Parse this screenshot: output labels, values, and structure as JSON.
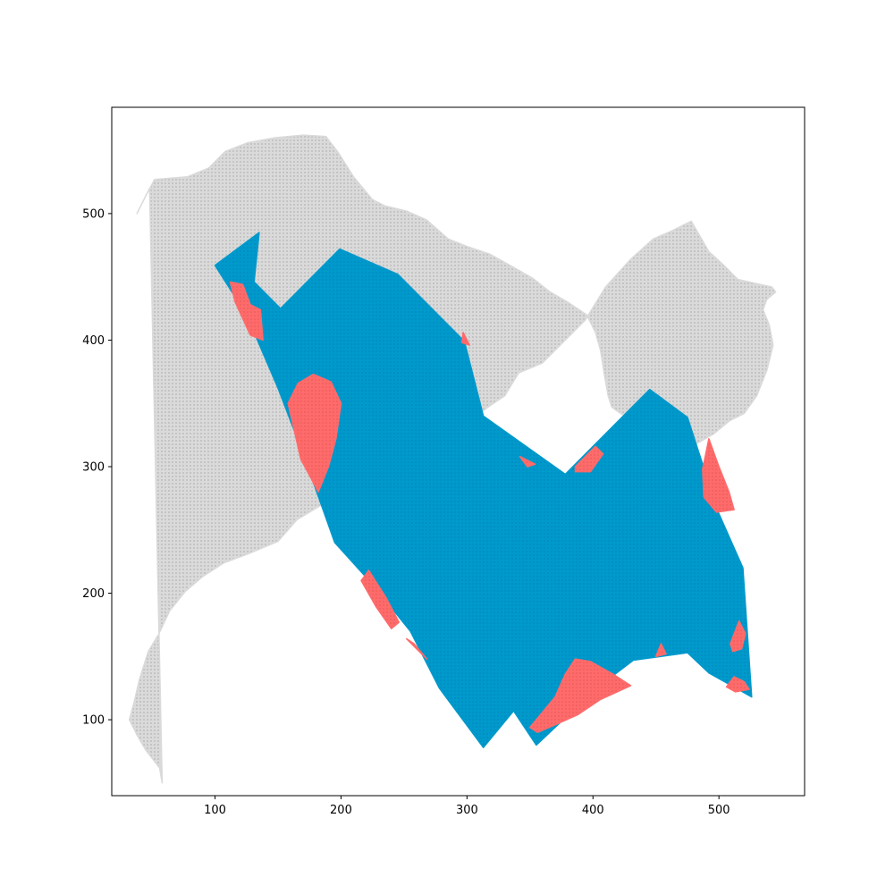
{
  "chart_data": {
    "type": "scatter",
    "title": "",
    "xlabel": "",
    "ylabel": "",
    "xlim": [
      18,
      568
    ],
    "ylim": [
      40,
      584
    ],
    "x_ticks": [
      100,
      200,
      300,
      400,
      500
    ],
    "y_ticks": [
      100,
      200,
      300,
      400,
      500
    ],
    "x_tick_labels": [
      "100",
      "200",
      "300",
      "400",
      "500"
    ],
    "y_tick_labels": [
      "100",
      "200",
      "300",
      "400",
      "500"
    ],
    "grid": false,
    "legend": "none",
    "colors": {
      "background_points": "#dadada",
      "hull_points": "#0099cc",
      "outside_hull_points": "#ff6b6b"
    },
    "series": [
      {
        "role": "all-points",
        "color": "#dadada",
        "outline": [
          [
            38,
            500
          ],
          [
            45,
            514
          ],
          [
            52,
            527
          ],
          [
            78,
            529
          ],
          [
            95,
            536
          ],
          [
            108,
            549
          ],
          [
            126,
            556
          ],
          [
            148,
            560
          ],
          [
            170,
            562
          ],
          [
            188,
            561
          ],
          [
            198,
            548
          ],
          [
            210,
            529
          ],
          [
            225,
            511
          ],
          [
            235,
            506
          ],
          [
            252,
            502
          ],
          [
            268,
            495
          ],
          [
            285,
            480
          ],
          [
            300,
            474
          ],
          [
            318,
            468
          ],
          [
            336,
            458
          ],
          [
            352,
            449
          ],
          [
            366,
            438
          ],
          [
            380,
            430
          ],
          [
            395,
            420
          ],
          [
            402,
            406
          ],
          [
            406,
            392
          ],
          [
            409,
            373
          ],
          [
            412,
            356
          ],
          [
            415,
            347
          ],
          [
            425,
            340
          ],
          [
            436,
            333
          ],
          [
            442,
            316
          ],
          [
            450,
            310
          ],
          [
            465,
            314
          ],
          [
            482,
            318
          ],
          [
            496,
            326
          ],
          [
            508,
            336
          ],
          [
            520,
            342
          ],
          [
            530,
            356
          ],
          [
            538,
            376
          ],
          [
            543,
            396
          ],
          [
            540,
            412
          ],
          [
            535,
            424
          ],
          [
            538,
            432
          ],
          [
            545,
            438
          ],
          [
            542,
            442
          ],
          [
            528,
            445
          ],
          [
            515,
            448
          ],
          [
            503,
            460
          ],
          [
            492,
            470
          ],
          [
            478,
            494
          ],
          [
            462,
            486
          ],
          [
            448,
            480
          ],
          [
            430,
            464
          ],
          [
            410,
            442
          ],
          [
            394,
            416
          ],
          [
            382,
            404
          ],
          [
            360,
            382
          ],
          [
            341,
            374
          ],
          [
            330,
            356
          ],
          [
            318,
            348
          ],
          [
            305,
            338
          ],
          [
            296,
            332
          ],
          [
            282,
            330
          ],
          [
            270,
            333
          ],
          [
            260,
            320
          ],
          [
            250,
            306
          ],
          [
            240,
            294
          ],
          [
            226,
            294
          ],
          [
            208,
            286
          ],
          [
            185,
            270
          ],
          [
            165,
            258
          ],
          [
            150,
            241
          ],
          [
            126,
            231
          ],
          [
            107,
            224
          ],
          [
            90,
            213
          ],
          [
            76,
            201
          ],
          [
            64,
            186
          ],
          [
            55,
            167
          ],
          [
            47,
            154
          ],
          [
            40,
            132
          ],
          [
            36,
            115
          ],
          [
            32,
            100
          ],
          [
            38,
            88
          ],
          [
            45,
            76
          ],
          [
            56,
            62
          ],
          [
            58,
            50
          ],
          [
            48,
            520
          ]
        ]
      },
      {
        "role": "hull-points",
        "color": "#0099cc",
        "outline": [
          [
            100,
            459
          ],
          [
            135,
            485
          ],
          [
            131,
            446
          ],
          [
            152,
            425
          ],
          [
            199,
            472
          ],
          [
            245,
            452
          ],
          [
            298,
            399
          ],
          [
            313,
            340
          ],
          [
            378,
            294
          ],
          [
            445,
            361
          ],
          [
            475,
            339
          ],
          [
            499,
            265
          ],
          [
            519,
            220
          ],
          [
            526,
            118
          ],
          [
            492,
            137
          ],
          [
            475,
            153
          ],
          [
            432,
            147
          ],
          [
            403,
            125
          ],
          [
            355,
            80
          ],
          [
            337,
            107
          ],
          [
            313,
            78
          ],
          [
            278,
            125
          ],
          [
            255,
            170
          ],
          [
            225,
            207
          ],
          [
            195,
            240
          ],
          [
            170,
            310
          ],
          [
            150,
            362
          ],
          [
            125,
            420
          ]
        ]
      },
      {
        "role": "outside-points",
        "color": "#ff6b6b",
        "clusters": [
          [
            [
              112,
              446
            ],
            [
              122,
              444
            ],
            [
              128,
              428
            ],
            [
              136,
              424
            ],
            [
              138,
              400
            ],
            [
              128,
              404
            ],
            [
              116,
              430
            ]
          ],
          [
            [
              158,
              350
            ],
            [
              166,
              366
            ],
            [
              178,
              373
            ],
            [
              192,
              367
            ],
            [
              200,
              350
            ],
            [
              196,
              322
            ],
            [
              190,
              300
            ],
            [
              182,
              280
            ],
            [
              168,
              306
            ]
          ],
          [
            [
              222,
              218
            ],
            [
              236,
              196
            ],
            [
              246,
              177
            ],
            [
              240,
              172
            ],
            [
              228,
              189
            ],
            [
              216,
              210
            ]
          ],
          [
            [
              252,
              164
            ],
            [
              262,
              154
            ],
            [
              268,
              148
            ],
            [
              258,
              160
            ]
          ],
          [
            [
              297,
              406
            ],
            [
              302,
              396
            ],
            [
              296,
              398
            ]
          ],
          [
            [
              342,
              308
            ],
            [
              354,
              302
            ],
            [
              348,
              300
            ]
          ],
          [
            [
              386,
              300
            ],
            [
              402,
              316
            ],
            [
              408,
              310
            ],
            [
              398,
              296
            ],
            [
              386,
              296
            ]
          ],
          [
            [
              350,
              94
            ],
            [
              360,
              106
            ],
            [
              370,
              118
            ],
            [
              378,
              136
            ],
            [
              386,
              148
            ],
            [
              398,
              146
            ],
            [
              416,
              136
            ],
            [
              430,
              127
            ],
            [
              406,
              116
            ],
            [
              388,
              104
            ],
            [
              370,
              96
            ],
            [
              356,
              90
            ]
          ],
          [
            [
              450,
              150
            ],
            [
              454,
              160
            ],
            [
              458,
              152
            ]
          ],
          [
            [
              487,
              298
            ],
            [
              492,
              322
            ],
            [
              500,
              300
            ],
            [
              508,
              280
            ],
            [
              512,
              266
            ],
            [
              498,
              264
            ],
            [
              488,
              276
            ]
          ],
          [
            [
              509,
              160
            ],
            [
              516,
              178
            ],
            [
              521,
              168
            ],
            [
              518,
              156
            ],
            [
              511,
              154
            ]
          ],
          [
            [
              506,
              126
            ],
            [
              512,
              134
            ],
            [
              520,
              130
            ],
            [
              524,
              124
            ],
            [
              513,
              122
            ]
          ]
        ]
      }
    ]
  }
}
